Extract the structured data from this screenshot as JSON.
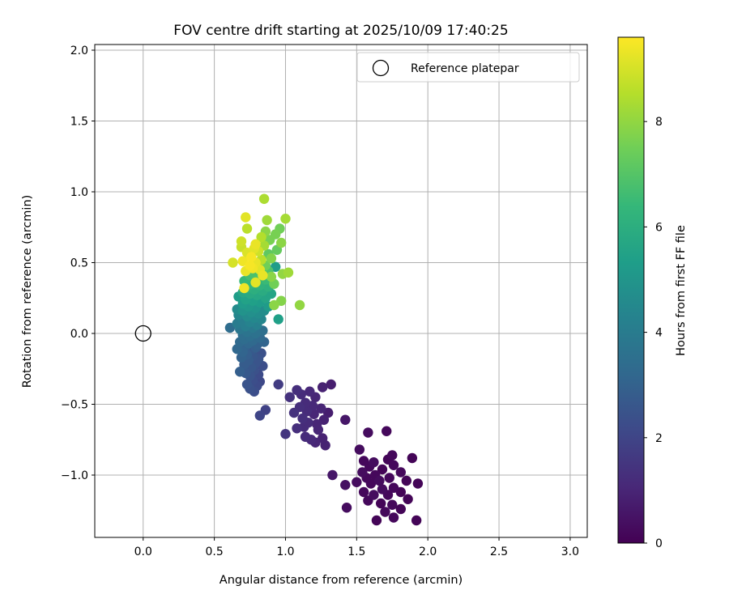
{
  "chart_data": {
    "type": "scatter",
    "title": "FOV centre drift starting at 2025/10/09 17:40:25",
    "xlabel": "Angular distance from reference (arcmin)",
    "ylabel": "Rotation from reference (arcmin)",
    "xlim": [
      -0.34,
      3.12
    ],
    "ylim": [
      -1.44,
      2.04
    ],
    "xticks": [
      "0.0",
      "0.5",
      "1.0",
      "1.5",
      "2.0",
      "2.5",
      "3.0"
    ],
    "xtick_values": [
      0,
      0.5,
      1.0,
      1.5,
      2.0,
      2.5,
      3.0
    ],
    "yticks": [
      "−1.0",
      "−0.5",
      "0.0",
      "0.5",
      "1.0",
      "1.5",
      "2.0"
    ],
    "ytick_values": [
      -1.0,
      -0.5,
      0.0,
      0.5,
      1.0,
      1.5,
      2.0
    ],
    "grid": true,
    "legend": {
      "position": "top-right",
      "entries": [
        "Reference platepar"
      ]
    },
    "reference_point": {
      "x": 0.0,
      "y": 0.0,
      "label": "Reference platepar",
      "marker": "open-circle"
    },
    "colorbar": {
      "label": "Hours from first FF file",
      "colormap": "viridis",
      "range": [
        0,
        9.6
      ],
      "ticks": [
        "0",
        "2",
        "4",
        "6",
        "8"
      ],
      "tick_values": [
        0,
        2,
        4,
        6,
        8
      ]
    },
    "points": [
      {
        "x": 1.64,
        "y": -1.32,
        "t": 0.1
      },
      {
        "x": 1.92,
        "y": -1.32,
        "t": 0.1
      },
      {
        "x": 1.76,
        "y": -1.3,
        "t": 0.2
      },
      {
        "x": 1.7,
        "y": -1.26,
        "t": 0.2
      },
      {
        "x": 1.81,
        "y": -1.24,
        "t": 0.1
      },
      {
        "x": 1.43,
        "y": -1.23,
        "t": 0.3
      },
      {
        "x": 1.75,
        "y": -1.21,
        "t": 0.2
      },
      {
        "x": 1.67,
        "y": -1.2,
        "t": 0.1
      },
      {
        "x": 1.58,
        "y": -1.18,
        "t": 0.2
      },
      {
        "x": 1.86,
        "y": -1.17,
        "t": 0.1
      },
      {
        "x": 1.62,
        "y": -1.14,
        "t": 0.3
      },
      {
        "x": 1.72,
        "y": -1.14,
        "t": 0.2
      },
      {
        "x": 1.55,
        "y": -1.12,
        "t": 0.2
      },
      {
        "x": 1.81,
        "y": -1.12,
        "t": 0.1
      },
      {
        "x": 1.68,
        "y": -1.1,
        "t": 0.3
      },
      {
        "x": 1.76,
        "y": -1.09,
        "t": 0.2
      },
      {
        "x": 1.42,
        "y": -1.07,
        "t": 0.4
      },
      {
        "x": 1.6,
        "y": -1.06,
        "t": 0.2
      },
      {
        "x": 1.93,
        "y": -1.06,
        "t": 0.1
      },
      {
        "x": 1.5,
        "y": -1.05,
        "t": 0.3
      },
      {
        "x": 1.66,
        "y": -1.04,
        "t": 0.3
      },
      {
        "x": 1.85,
        "y": -1.04,
        "t": 0.1
      },
      {
        "x": 1.57,
        "y": -1.02,
        "t": 0.2
      },
      {
        "x": 1.73,
        "y": -1.02,
        "t": 0.2
      },
      {
        "x": 1.63,
        "y": -1.0,
        "t": 0.2
      },
      {
        "x": 1.33,
        "y": -1.0,
        "t": 0.6
      },
      {
        "x": 1.54,
        "y": -0.98,
        "t": 0.3
      },
      {
        "x": 1.81,
        "y": -0.98,
        "t": 0.2
      },
      {
        "x": 1.68,
        "y": -0.96,
        "t": 0.1
      },
      {
        "x": 1.59,
        "y": -0.94,
        "t": 0.2
      },
      {
        "x": 1.76,
        "y": -0.93,
        "t": 0.2
      },
      {
        "x": 1.62,
        "y": -0.91,
        "t": 0.3
      },
      {
        "x": 1.55,
        "y": -0.9,
        "t": 0.2
      },
      {
        "x": 1.72,
        "y": -0.89,
        "t": 0.1
      },
      {
        "x": 1.89,
        "y": -0.88,
        "t": 0.1
      },
      {
        "x": 1.75,
        "y": -0.86,
        "t": 0.2
      },
      {
        "x": 1.52,
        "y": -0.82,
        "t": 0.3
      },
      {
        "x": 1.28,
        "y": -0.79,
        "t": 0.9
      },
      {
        "x": 1.21,
        "y": -0.77,
        "t": 1.0
      },
      {
        "x": 1.18,
        "y": -0.75,
        "t": 1.1
      },
      {
        "x": 1.26,
        "y": -0.74,
        "t": 0.9
      },
      {
        "x": 1.14,
        "y": -0.73,
        "t": 1.2
      },
      {
        "x": 1.0,
        "y": -0.71,
        "t": 1.5
      },
      {
        "x": 1.58,
        "y": -0.7,
        "t": 0.3
      },
      {
        "x": 1.71,
        "y": -0.69,
        "t": 0.2
      },
      {
        "x": 1.23,
        "y": -0.68,
        "t": 1.0
      },
      {
        "x": 1.08,
        "y": -0.67,
        "t": 1.3
      },
      {
        "x": 1.13,
        "y": -0.66,
        "t": 1.2
      },
      {
        "x": 1.22,
        "y": -0.64,
        "t": 1.0
      },
      {
        "x": 1.16,
        "y": -0.63,
        "t": 1.2
      },
      {
        "x": 1.42,
        "y": -0.61,
        "t": 0.6
      },
      {
        "x": 1.27,
        "y": -0.61,
        "t": 0.9
      },
      {
        "x": 1.12,
        "y": -0.6,
        "t": 1.3
      },
      {
        "x": 0.82,
        "y": -0.58,
        "t": 2.0
      },
      {
        "x": 1.2,
        "y": -0.57,
        "t": 1.0
      },
      {
        "x": 1.06,
        "y": -0.56,
        "t": 1.4
      },
      {
        "x": 1.3,
        "y": -0.56,
        "t": 0.8
      },
      {
        "x": 1.15,
        "y": -0.55,
        "t": 1.2
      },
      {
        "x": 0.86,
        "y": -0.54,
        "t": 1.9
      },
      {
        "x": 1.25,
        "y": -0.53,
        "t": 1.0
      },
      {
        "x": 1.1,
        "y": -0.52,
        "t": 1.3
      },
      {
        "x": 1.19,
        "y": -0.51,
        "t": 1.1
      },
      {
        "x": 1.14,
        "y": -0.49,
        "t": 1.2
      },
      {
        "x": 1.03,
        "y": -0.45,
        "t": 1.4
      },
      {
        "x": 1.21,
        "y": -0.45,
        "t": 1.0
      },
      {
        "x": 1.11,
        "y": -0.43,
        "t": 1.2
      },
      {
        "x": 1.17,
        "y": -0.41,
        "t": 1.1
      },
      {
        "x": 1.08,
        "y": -0.4,
        "t": 1.3
      },
      {
        "x": 1.26,
        "y": -0.38,
        "t": 0.9
      },
      {
        "x": 1.32,
        "y": -0.36,
        "t": 0.8
      },
      {
        "x": 0.95,
        "y": -0.36,
        "t": 1.7
      },
      {
        "x": 0.78,
        "y": -0.41,
        "t": 2.3
      },
      {
        "x": 0.75,
        "y": -0.39,
        "t": 2.4
      },
      {
        "x": 0.8,
        "y": -0.37,
        "t": 2.2
      },
      {
        "x": 0.73,
        "y": -0.36,
        "t": 2.5
      },
      {
        "x": 0.82,
        "y": -0.34,
        "t": 2.1
      },
      {
        "x": 0.77,
        "y": -0.33,
        "t": 2.3
      },
      {
        "x": 0.75,
        "y": -0.3,
        "t": 2.5
      },
      {
        "x": 0.81,
        "y": -0.29,
        "t": 2.2
      },
      {
        "x": 0.72,
        "y": -0.28,
        "t": 2.7
      },
      {
        "x": 0.68,
        "y": -0.27,
        "t": 2.9
      },
      {
        "x": 0.78,
        "y": -0.26,
        "t": 2.4
      },
      {
        "x": 0.76,
        "y": -0.24,
        "t": 2.6
      },
      {
        "x": 0.84,
        "y": -0.23,
        "t": 2.3
      },
      {
        "x": 0.71,
        "y": -0.22,
        "t": 2.8
      },
      {
        "x": 0.79,
        "y": -0.21,
        "t": 2.5
      },
      {
        "x": 0.74,
        "y": -0.19,
        "t": 2.8
      },
      {
        "x": 0.81,
        "y": -0.18,
        "t": 2.5
      },
      {
        "x": 0.69,
        "y": -0.17,
        "t": 3.0
      },
      {
        "x": 0.77,
        "y": -0.16,
        "t": 2.6
      },
      {
        "x": 0.73,
        "y": -0.15,
        "t": 2.9
      },
      {
        "x": 0.83,
        "y": -0.14,
        "t": 2.4
      },
      {
        "x": 0.7,
        "y": -0.13,
        "t": 3.1
      },
      {
        "x": 0.76,
        "y": -0.12,
        "t": 2.7
      },
      {
        "x": 0.66,
        "y": -0.11,
        "t": 3.2
      },
      {
        "x": 0.79,
        "y": -0.1,
        "t": 2.9
      },
      {
        "x": 0.72,
        "y": -0.09,
        "t": 3.0
      },
      {
        "x": 0.8,
        "y": -0.08,
        "t": 3.0
      },
      {
        "x": 0.74,
        "y": -0.07,
        "t": 3.2
      },
      {
        "x": 0.68,
        "y": -0.06,
        "t": 3.3
      },
      {
        "x": 0.85,
        "y": -0.06,
        "t": 3.1
      },
      {
        "x": 0.77,
        "y": -0.05,
        "t": 3.3
      },
      {
        "x": 0.71,
        "y": -0.04,
        "t": 3.4
      },
      {
        "x": 0.82,
        "y": -0.03,
        "t": 3.3
      },
      {
        "x": 0.75,
        "y": -0.02,
        "t": 3.5
      },
      {
        "x": 0.7,
        "y": -0.01,
        "t": 3.5
      },
      {
        "x": 0.79,
        "y": 0.0,
        "t": 3.6
      },
      {
        "x": 0.73,
        "y": 0.01,
        "t": 3.7
      },
      {
        "x": 0.84,
        "y": 0.02,
        "t": 3.5
      },
      {
        "x": 0.68,
        "y": 0.03,
        "t": 3.8
      },
      {
        "x": 0.61,
        "y": 0.04,
        "t": 3.4
      },
      {
        "x": 0.77,
        "y": 0.04,
        "t": 3.9
      },
      {
        "x": 0.72,
        "y": 0.05,
        "t": 4.1
      },
      {
        "x": 0.8,
        "y": 0.06,
        "t": 4.2
      },
      {
        "x": 0.66,
        "y": 0.07,
        "t": 4.0
      },
      {
        "x": 0.75,
        "y": 0.08,
        "t": 4.3
      },
      {
        "x": 0.7,
        "y": 0.09,
        "t": 4.1
      },
      {
        "x": 0.95,
        "y": 0.1,
        "t": 5.4
      },
      {
        "x": 0.83,
        "y": 0.1,
        "t": 4.4
      },
      {
        "x": 0.78,
        "y": 0.11,
        "t": 4.5
      },
      {
        "x": 0.73,
        "y": 0.12,
        "t": 4.6
      },
      {
        "x": 0.67,
        "y": 0.13,
        "t": 4.4
      },
      {
        "x": 0.81,
        "y": 0.14,
        "t": 4.7
      },
      {
        "x": 0.76,
        "y": 0.15,
        "t": 4.8
      },
      {
        "x": 0.7,
        "y": 0.16,
        "t": 4.9
      },
      {
        "x": 0.85,
        "y": 0.16,
        "t": 4.7
      },
      {
        "x": 0.66,
        "y": 0.17,
        "t": 4.6
      },
      {
        "x": 0.79,
        "y": 0.18,
        "t": 5.0
      },
      {
        "x": 0.74,
        "y": 0.19,
        "t": 5.1
      },
      {
        "x": 0.88,
        "y": 0.19,
        "t": 5.2
      },
      {
        "x": 0.92,
        "y": 0.2,
        "t": 7.9
      },
      {
        "x": 1.1,
        "y": 0.2,
        "t": 8.0
      },
      {
        "x": 0.7,
        "y": 0.21,
        "t": 5.2
      },
      {
        "x": 0.82,
        "y": 0.22,
        "t": 5.3
      },
      {
        "x": 0.77,
        "y": 0.23,
        "t": 5.4
      },
      {
        "x": 0.97,
        "y": 0.23,
        "t": 7.8
      },
      {
        "x": 0.72,
        "y": 0.24,
        "t": 5.5
      },
      {
        "x": 0.86,
        "y": 0.25,
        "t": 5.6
      },
      {
        "x": 0.67,
        "y": 0.26,
        "t": 5.3
      },
      {
        "x": 0.8,
        "y": 0.27,
        "t": 5.7
      },
      {
        "x": 0.75,
        "y": 0.28,
        "t": 5.8
      },
      {
        "x": 0.9,
        "y": 0.28,
        "t": 5.6
      },
      {
        "x": 0.7,
        "y": 0.29,
        "t": 5.7
      },
      {
        "x": 0.84,
        "y": 0.3,
        "t": 5.9
      },
      {
        "x": 0.78,
        "y": 0.31,
        "t": 6.0
      },
      {
        "x": 0.73,
        "y": 0.32,
        "t": 6.1
      },
      {
        "x": 0.71,
        "y": 0.32,
        "t": 9.4
      },
      {
        "x": 0.88,
        "y": 0.33,
        "t": 6.1
      },
      {
        "x": 0.82,
        "y": 0.34,
        "t": 6.2
      },
      {
        "x": 0.76,
        "y": 0.35,
        "t": 6.3
      },
      {
        "x": 0.92,
        "y": 0.35,
        "t": 7.5
      },
      {
        "x": 0.79,
        "y": 0.36,
        "t": 9.2
      },
      {
        "x": 0.71,
        "y": 0.37,
        "t": 6.4
      },
      {
        "x": 0.86,
        "y": 0.38,
        "t": 6.5
      },
      {
        "x": 0.8,
        "y": 0.39,
        "t": 6.6
      },
      {
        "x": 0.9,
        "y": 0.4,
        "t": 7.9
      },
      {
        "x": 0.75,
        "y": 0.41,
        "t": 6.7
      },
      {
        "x": 0.84,
        "y": 0.41,
        "t": 9.3
      },
      {
        "x": 0.98,
        "y": 0.42,
        "t": 8.0
      },
      {
        "x": 1.02,
        "y": 0.43,
        "t": 8.2
      },
      {
        "x": 0.78,
        "y": 0.42,
        "t": 6.8
      },
      {
        "x": 0.88,
        "y": 0.44,
        "t": 6.9
      },
      {
        "x": 0.72,
        "y": 0.44,
        "t": 9.3
      },
      {
        "x": 0.82,
        "y": 0.45,
        "t": 9.2
      },
      {
        "x": 0.77,
        "y": 0.46,
        "t": 9.4
      },
      {
        "x": 0.93,
        "y": 0.47,
        "t": 5.3
      },
      {
        "x": 0.75,
        "y": 0.48,
        "t": 9.5
      },
      {
        "x": 0.86,
        "y": 0.48,
        "t": 7.5
      },
      {
        "x": 0.63,
        "y": 0.5,
        "t": 9.0
      },
      {
        "x": 0.79,
        "y": 0.5,
        "t": 9.3
      },
      {
        "x": 0.7,
        "y": 0.51,
        "t": 9.4
      },
      {
        "x": 0.83,
        "y": 0.52,
        "t": 8.6
      },
      {
        "x": 0.9,
        "y": 0.53,
        "t": 7.8
      },
      {
        "x": 0.76,
        "y": 0.54,
        "t": 9.5
      },
      {
        "x": 0.88,
        "y": 0.56,
        "t": 7.2
      },
      {
        "x": 0.73,
        "y": 0.57,
        "t": 9.1
      },
      {
        "x": 0.81,
        "y": 0.58,
        "t": 8.9
      },
      {
        "x": 0.94,
        "y": 0.59,
        "t": 7.3
      },
      {
        "x": 0.78,
        "y": 0.6,
        "t": 9.2
      },
      {
        "x": 0.69,
        "y": 0.61,
        "t": 8.8
      },
      {
        "x": 0.85,
        "y": 0.62,
        "t": 8.3
      },
      {
        "x": 0.79,
        "y": 0.63,
        "t": 9.3
      },
      {
        "x": 0.97,
        "y": 0.64,
        "t": 7.9
      },
      {
        "x": 0.69,
        "y": 0.65,
        "t": 8.9
      },
      {
        "x": 0.89,
        "y": 0.66,
        "t": 7.6
      },
      {
        "x": 0.83,
        "y": 0.68,
        "t": 8.5
      },
      {
        "x": 0.93,
        "y": 0.7,
        "t": 7.6
      },
      {
        "x": 0.86,
        "y": 0.72,
        "t": 7.9
      },
      {
        "x": 0.96,
        "y": 0.74,
        "t": 7.5
      },
      {
        "x": 0.73,
        "y": 0.74,
        "t": 8.6
      },
      {
        "x": 0.87,
        "y": 0.8,
        "t": 8.2
      },
      {
        "x": 1.0,
        "y": 0.81,
        "t": 8.3
      },
      {
        "x": 0.72,
        "y": 0.82,
        "t": 9.2
      },
      {
        "x": 0.85,
        "y": 0.95,
        "t": 8.4
      }
    ]
  }
}
